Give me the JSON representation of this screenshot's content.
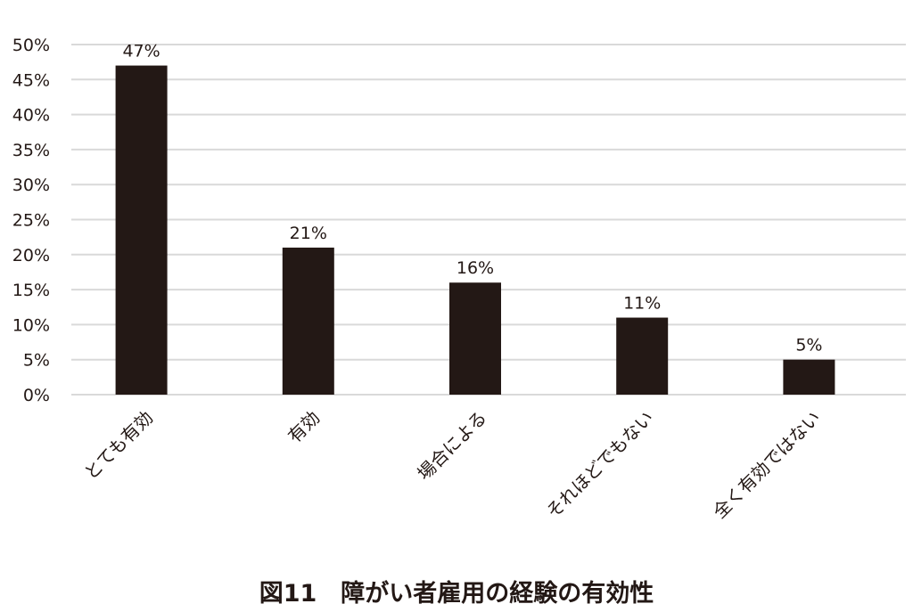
{
  "chart_data": {
    "type": "bar",
    "title": "図11　障がい者雇用の経験の有効性",
    "categories": [
      "とても有効",
      "有効",
      "場合による",
      "それほどでもない",
      "全く有効ではない"
    ],
    "values": [
      47,
      21,
      16,
      11,
      5
    ],
    "data_labels": [
      "47%",
      "21%",
      "16%",
      "11%",
      "5%"
    ],
    "ylim": [
      0,
      50
    ],
    "yticks": [
      0,
      5,
      10,
      15,
      20,
      25,
      30,
      35,
      40,
      45,
      50
    ],
    "ytick_labels": [
      "0%",
      "5%",
      "10%",
      "15%",
      "20%",
      "25%",
      "30%",
      "35%",
      "40%",
      "45%",
      "50%"
    ],
    "grid": true,
    "bar_color": "#231815",
    "grid_color": "#d9d9d9"
  }
}
